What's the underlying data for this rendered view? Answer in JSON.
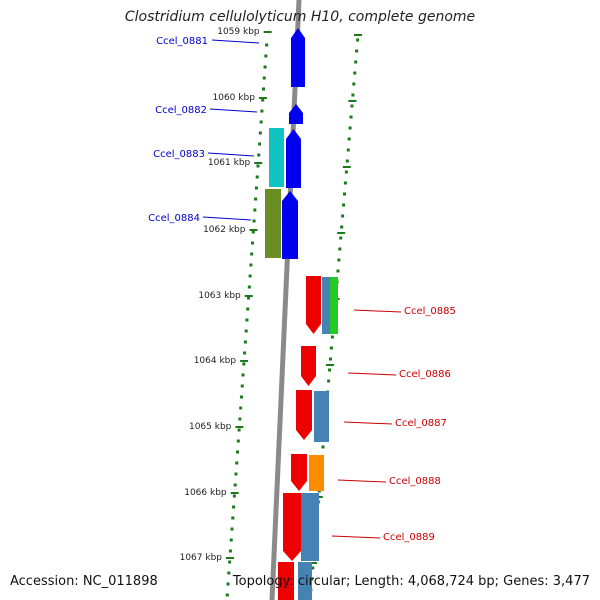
{
  "title": "Clostridium cellulolyticum H10, complete genome",
  "footer": {
    "accession": "Accession: NC_011898",
    "topology": "Topology: circular; Length: 4,068,724 bp; Genes: 3,477"
  },
  "ruler_labels": [
    "1059 kbp",
    "1060 kbp",
    "1061 kbp",
    "1062 kbp",
    "1063 kbp",
    "1064 kbp",
    "1065 kbp",
    "1066 kbp",
    "1067 kbp"
  ],
  "genes": [
    {
      "label": "Ccel_0881",
      "strand": "minus",
      "color": "#0000ee"
    },
    {
      "label": "Ccel_0882",
      "strand": "minus",
      "color": "#0000ee"
    },
    {
      "label": "Ccel_0883",
      "strand": "minus",
      "color": "#0000ee"
    },
    {
      "label": "Ccel_0884",
      "strand": "minus",
      "color": "#0000ee"
    },
    {
      "label": "Ccel_0885",
      "strand": "plus",
      "color": "#ee0000"
    },
    {
      "label": "Ccel_0886",
      "strand": "plus",
      "color": "#ee0000"
    },
    {
      "label": "Ccel_0887",
      "strand": "plus",
      "color": "#ee0000"
    },
    {
      "label": "Ccel_0888",
      "strand": "plus",
      "color": "#ee0000"
    },
    {
      "label": "Ccel_0889",
      "strand": "plus",
      "color": "#ee0000"
    }
  ],
  "colors": {
    "minus_label": "#0000cc",
    "plus_label": "#cc0000",
    "backbone": "#8a8a8a",
    "ticks": "#1a7a1a",
    "cyan": "#10c4c4",
    "olive": "#6b8e23",
    "steelblue": "#4682b4",
    "green": "#22cc22",
    "orange": "#ff8c00"
  }
}
